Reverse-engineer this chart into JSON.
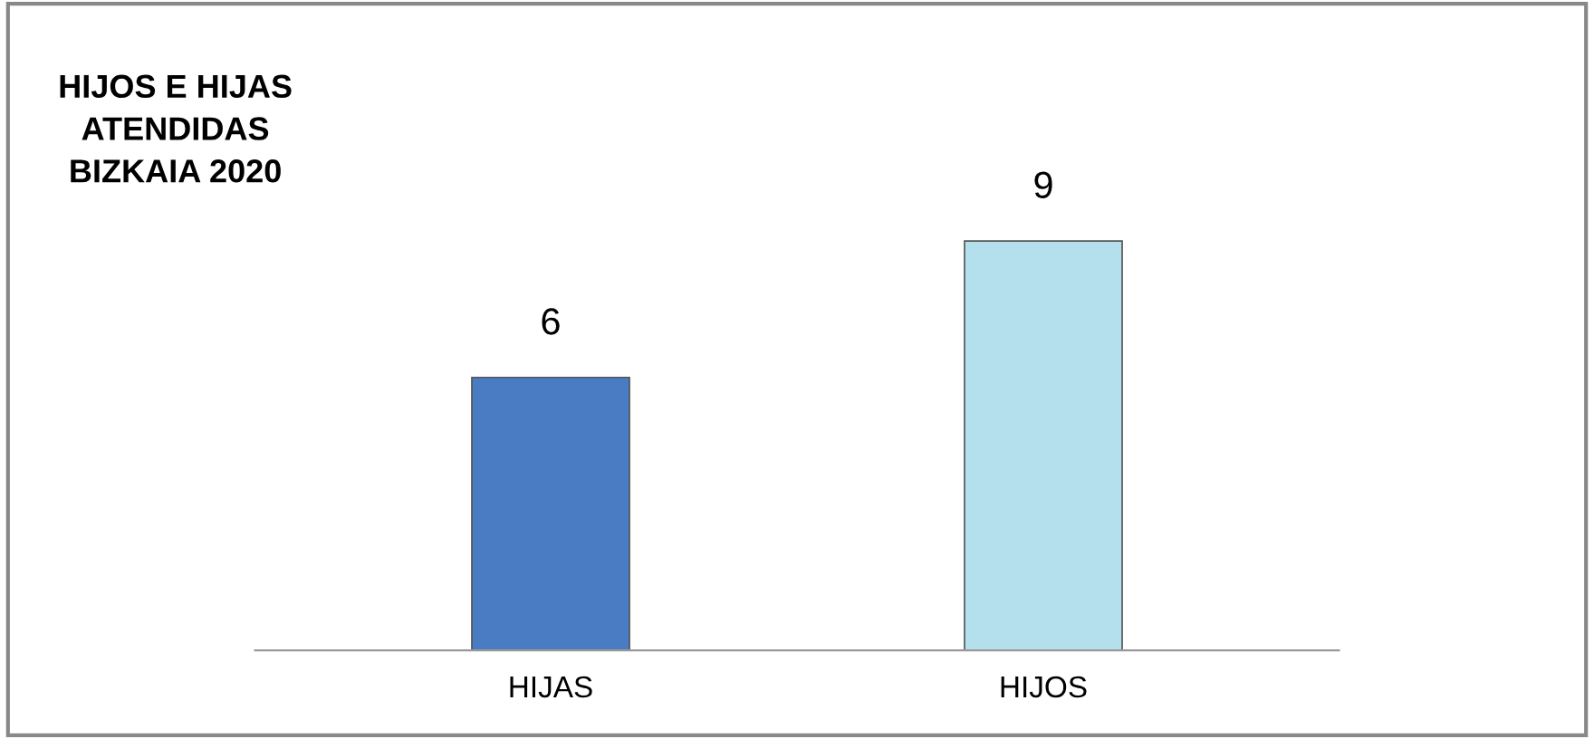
{
  "chart_data": {
    "type": "bar",
    "title": "HIJOS E HIJAS\nATENDIDAS\nBIZKAIA 2020",
    "categories": [
      "HIJAS",
      "HIJOS"
    ],
    "values": [
      6,
      9
    ],
    "colors": [
      "#4a7cc4",
      "#b3e0ec"
    ],
    "data_labels": true,
    "grid": false,
    "legend": false
  }
}
